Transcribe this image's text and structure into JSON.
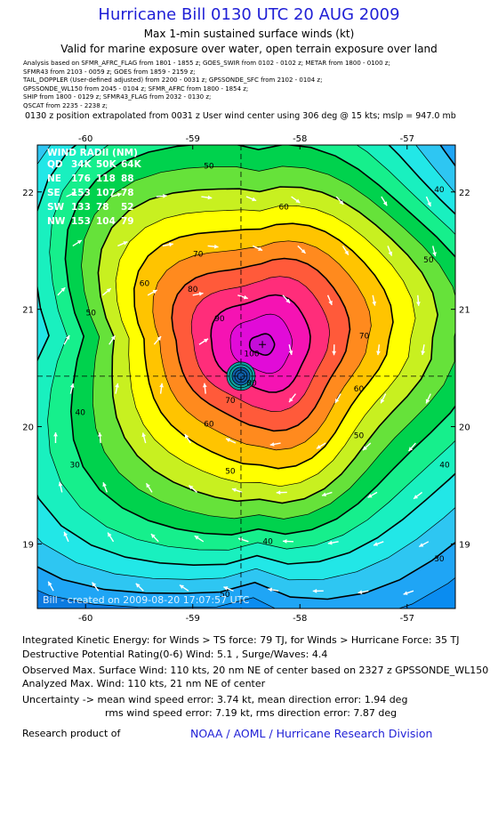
{
  "header": {
    "title": "Hurricane Bill 0130 UTC 20 AUG 2009",
    "subtitle1": "Max 1-min sustained surface winds (kt)",
    "subtitle2": "Valid for marine exposure over water, open terrain exposure over land",
    "analysis_lines": [
      "Analysis based on  SFMR_AFRC_FLAG from 1801 - 1855 z;  GOES_SWIR from 0102 - 0102 z;  METAR from 1800 - 0100 z;",
      "SFMR43 from 2103 - 0059 z;  GOES from 1859 - 2159 z;",
      "TAIL_DOPPLER (User-defined adjusted) from 2200 - 0031 z;  GPSSONDE_SFC from 2102 - 0104 z;",
      "GPSSONDE_WL150 from 2045 - 0104 z;  SFMR_AFRC from 1800 - 1854 z;",
      "SHIP from 1800 - 0129 z;  SFMR43_FLAG from 2032 - 0130 z;",
      "QSCAT from 2235 - 2238 z;"
    ],
    "position_line": "0130 z position extrapolated from 0031 z User wind center using 306 deg @ 15 kts; mslp = 947.0 mb"
  },
  "chart_data": {
    "type": "heatmap",
    "x_ticks": [
      "-60",
      "-59",
      "-58",
      "-57"
    ],
    "y_ticks": [
      "22",
      "21",
      "20",
      "19"
    ],
    "xlim": [
      -60.45,
      -56.55
    ],
    "ylim": [
      18.45,
      22.4
    ],
    "center": {
      "lon": -58.55,
      "lat": 20.43
    },
    "max_wind_location": {
      "lon": -58.35,
      "lat": 20.7
    },
    "contour_levels": [
      30,
      40,
      50,
      60,
      70,
      80,
      90,
      100
    ],
    "contour_labels": [
      {
        "text": "40",
        "lon": -56.7,
        "lat": 22.0
      },
      {
        "text": "50",
        "lon": -58.85,
        "lat": 22.2
      },
      {
        "text": "60",
        "lon": -58.15,
        "lat": 21.85
      },
      {
        "text": "70",
        "lon": -58.95,
        "lat": 21.45
      },
      {
        "text": "80",
        "lon": -59.0,
        "lat": 21.15
      },
      {
        "text": "90",
        "lon": -58.75,
        "lat": 20.9
      },
      {
        "text": "100",
        "lon": -58.45,
        "lat": 20.6
      },
      {
        "text": "60",
        "lon": -59.45,
        "lat": 21.2
      },
      {
        "text": "50",
        "lon": -59.95,
        "lat": 20.95
      },
      {
        "text": "40",
        "lon": -60.05,
        "lat": 20.1
      },
      {
        "text": "30",
        "lon": -60.1,
        "lat": 19.65
      },
      {
        "text": "50",
        "lon": -56.8,
        "lat": 21.4
      },
      {
        "text": "70",
        "lon": -57.4,
        "lat": 20.75
      },
      {
        "text": "60",
        "lon": -57.45,
        "lat": 20.3
      },
      {
        "text": "50",
        "lon": -57.45,
        "lat": 19.9
      },
      {
        "text": "40",
        "lon": -56.65,
        "lat": 19.65
      },
      {
        "text": "30",
        "lon": -56.7,
        "lat": 18.85
      },
      {
        "text": "40",
        "lon": -58.3,
        "lat": 19.0
      },
      {
        "text": "50",
        "lon": -58.65,
        "lat": 19.6
      },
      {
        "text": "60",
        "lon": -58.85,
        "lat": 20.0
      },
      {
        "text": "70",
        "lon": -58.65,
        "lat": 20.2
      },
      {
        "text": "80",
        "lon": -58.45,
        "lat": 20.35
      },
      {
        "text": "50",
        "lon": -58.7,
        "lat": 18.55
      }
    ],
    "wind_radii": {
      "title": "WIND RADII (NM)",
      "header": [
        "QD",
        "34K",
        "50K",
        "64K"
      ],
      "rows": [
        [
          "NE",
          "176",
          "118",
          "88"
        ],
        [
          "SE",
          "153",
          "107",
          "78"
        ],
        [
          "SW",
          "133",
          "78",
          "52"
        ],
        [
          "NW",
          "153",
          "104",
          "79"
        ]
      ]
    },
    "watermark": "Bill - created on 2009-08-20 17:07:57 UTC"
  },
  "footer": {
    "ike": "Integrated Kinetic Energy:  for Winds > TS force: 79 TJ,  for Winds > Hurricane Force: 35 TJ",
    "dpr": "Destructive Potential Rating(0-6)  Wind: 5.1 , Surge/Waves: 4.4",
    "obs_max": "Observed Max. Surface Wind: 110 kts, 20 nm NE of center based on 2327 z GPSSONDE_WL150",
    "ana_max": "Analyzed Max. Wind: 110 kts, 21 nm NE of center",
    "unc1": "Uncertainty -> mean wind speed error: 3.74 kt,   mean direction error: 1.94 deg",
    "unc2": "rms wind speed error: 7.19 kt,   rms direction error: 7.87 deg",
    "research": "Research product of",
    "noaa": "NOAA / AOML / Hurricane Research Division"
  }
}
